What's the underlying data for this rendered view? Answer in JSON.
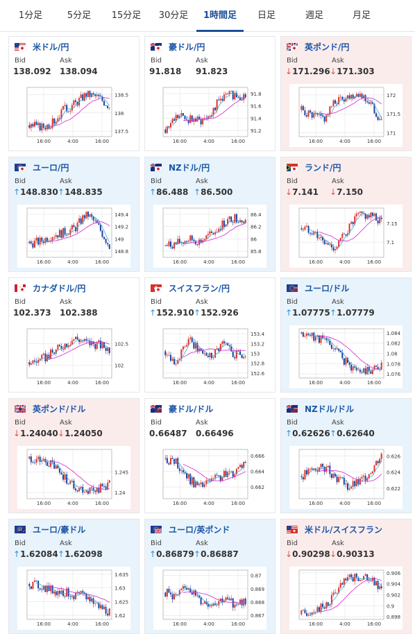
{
  "tabs": [
    "1分足",
    "5分足",
    "15分足",
    "30分足",
    "1時間足",
    "日足",
    "週足",
    "月足"
  ],
  "active_tab": "1時間足",
  "bid_label": "Bid",
  "ask_label": "Ask",
  "colors": {
    "candle_up": "#d9342b",
    "candle_down": "#1e3f9c",
    "ma_short": "#3aa8d8",
    "ma_long": "#d63ad6",
    "accent": "#1a4f98"
  },
  "cards": [
    {
      "name": "米ドル/円",
      "flags": [
        "us",
        "jp"
      ],
      "bg": "white",
      "bid": "138.092",
      "ask": "138.094",
      "dir": "none",
      "yticks": [
        "138.5",
        "138",
        "137.5"
      ],
      "xticks": [
        "16:00",
        "4:00",
        "16:00"
      ],
      "ytick_values": [
        138.5,
        138.0,
        137.5
      ],
      "ylim": [
        137.35,
        138.7
      ]
    },
    {
      "name": "豪ドル/円",
      "flags": [
        "au",
        "jp"
      ],
      "bg": "white",
      "bid": "91.818",
      "ask": "91.823",
      "dir": "none",
      "yticks": [
        "91.8",
        "91.6",
        "91.4",
        "91.2"
      ],
      "xticks": [
        "16:00",
        "4:00",
        "16:00"
      ],
      "ytick_values": [
        91.8,
        91.6,
        91.4,
        91.2
      ],
      "ylim": [
        91.1,
        91.9
      ]
    },
    {
      "name": "英ポンド/円",
      "flags": [
        "gb",
        "jp"
      ],
      "bg": "pink",
      "bid": "171.296",
      "ask": "171.303",
      "dir": "down",
      "yticks": [
        "172",
        "171.5",
        "171"
      ],
      "xticks": [
        "16:00",
        "4:00",
        "16:00"
      ],
      "ytick_values": [
        172,
        171.5,
        171
      ],
      "ylim": [
        170.9,
        172.2
      ]
    },
    {
      "name": "ユーロ/円",
      "flags": [
        "eu",
        "jp"
      ],
      "bg": "blue",
      "bid": "148.830",
      "ask": "148.835",
      "dir": "up",
      "yticks": [
        "149.4",
        "149.2",
        "149",
        "148.8"
      ],
      "xticks": [
        "16:00",
        "4:00",
        "16:00"
      ],
      "ytick_values": [
        149.4,
        149.2,
        149.0,
        148.8
      ],
      "ylim": [
        148.7,
        149.5
      ]
    },
    {
      "name": "NZドル/円",
      "flags": [
        "nz",
        "jp"
      ],
      "bg": "blue",
      "bid": "86.488",
      "ask": "86.500",
      "dir": "up",
      "yticks": [
        "86.4",
        "86.2",
        "86",
        "85.8"
      ],
      "xticks": [
        "16:00",
        "4:00",
        "16:00"
      ],
      "ytick_values": [
        86.4,
        86.2,
        86.0,
        85.8
      ],
      "ylim": [
        85.7,
        86.5
      ]
    },
    {
      "name": "ランド/円",
      "flags": [
        "za",
        "jp"
      ],
      "bg": "pink",
      "bid": "7.141",
      "ask": "7.150",
      "dir": "down",
      "yticks": [
        "7.15",
        "7.1"
      ],
      "xticks": [
        "16:00",
        "4:00",
        "16:00"
      ],
      "ytick_values": [
        7.15,
        7.1
      ],
      "ylim": [
        7.06,
        7.19
      ]
    },
    {
      "name": "カナダドル/円",
      "flags": [
        "ca",
        "jp"
      ],
      "bg": "white",
      "bid": "102.373",
      "ask": "102.388",
      "dir": "none",
      "yticks": [
        "102.5",
        "102"
      ],
      "xticks": [
        "16:00",
        "4:00",
        "16:00"
      ],
      "ytick_values": [
        102.5,
        102.0
      ],
      "ylim": [
        101.7,
        102.85
      ]
    },
    {
      "name": "スイスフラン/円",
      "flags": [
        "ch",
        "jp"
      ],
      "bg": "white",
      "bid": "152.910",
      "ask": "152.926",
      "dir": "up",
      "yticks": [
        "153.4",
        "153.2",
        "153",
        "152.8",
        "152.6"
      ],
      "xticks": [
        "16:00",
        "4:00",
        "16:00"
      ],
      "ytick_values": [
        153.4,
        153.2,
        153.0,
        152.8,
        152.6
      ],
      "ylim": [
        152.5,
        153.5
      ]
    },
    {
      "name": "ユーロ/ドル",
      "flags": [
        "eu",
        "us"
      ],
      "bg": "blue",
      "bid": "1.07775",
      "ask": "1.07779",
      "dir": "up",
      "yticks": [
        "1.084",
        "1.082",
        "1.08",
        "1.078",
        "1.076"
      ],
      "xticks": [
        "16:00",
        "4:00",
        "16:00"
      ],
      "ytick_values": [
        1.084,
        1.082,
        1.08,
        1.078,
        1.076
      ],
      "ylim": [
        1.0752,
        1.0848
      ]
    },
    {
      "name": "英ポンド/ドル",
      "flags": [
        "gb",
        "us"
      ],
      "bg": "pink",
      "bid": "1.24040",
      "ask": "1.24050",
      "dir": "down",
      "yticks": [
        "1.245",
        "1.24"
      ],
      "xticks": [
        "16:00",
        "4:00",
        "16:00"
      ],
      "ytick_values": [
        1.245,
        1.24
      ],
      "ylim": [
        1.2385,
        1.2505
      ]
    },
    {
      "name": "豪ドル/ドル",
      "flags": [
        "au",
        "us"
      ],
      "bg": "white",
      "bid": "0.66487",
      "ask": "0.66496",
      "dir": "none",
      "yticks": [
        "0.666",
        "0.664",
        "0.662"
      ],
      "xticks": [
        "16:00",
        "4:00",
        "16:00"
      ],
      "ytick_values": [
        0.666,
        0.664,
        0.662
      ],
      "ylim": [
        0.6605,
        0.6668
      ]
    },
    {
      "name": "NZドル/ドル",
      "flags": [
        "nz",
        "us"
      ],
      "bg": "blue",
      "bid": "0.62626",
      "ask": "0.62640",
      "dir": "up",
      "yticks": [
        "0.626",
        "0.624",
        "0.622"
      ],
      "xticks": [
        "16:00",
        "4:00",
        "16:00"
      ],
      "ytick_values": [
        0.626,
        0.624,
        0.622
      ],
      "ylim": [
        0.6207,
        0.6268
      ]
    },
    {
      "name": "ユーロ/豪ドル",
      "flags": [
        "eu",
        "au"
      ],
      "bg": "blue",
      "bid": "1.62084",
      "ask": "1.62098",
      "dir": "up",
      "yticks": [
        "1.635",
        "1.63",
        "1.625",
        "1.62"
      ],
      "xticks": [
        "16:00",
        "4:00",
        "16:00"
      ],
      "ytick_values": [
        1.635,
        1.63,
        1.625,
        1.62
      ],
      "ylim": [
        1.6185,
        1.6365
      ]
    },
    {
      "name": "ユーロ/英ポンド",
      "flags": [
        "eu",
        "gb"
      ],
      "bg": "blue",
      "bid": "0.86879",
      "ask": "0.86887",
      "dir": "up",
      "yticks": [
        "0.87",
        "0.869",
        "0.868",
        "0.867"
      ],
      "xticks": [
        "16:00",
        "4:00",
        "16:00"
      ],
      "ytick_values": [
        0.87,
        0.869,
        0.868,
        0.867
      ],
      "ylim": [
        0.8667,
        0.8704
      ]
    },
    {
      "name": "米ドル/スイスフラン",
      "flags": [
        "us",
        "ch"
      ],
      "bg": "pink",
      "bid": "0.90298",
      "ask": "0.90313",
      "dir": "down",
      "yticks": [
        "0.906",
        "0.904",
        "0.902",
        "0.9",
        "0.898"
      ],
      "xticks": [
        "16:00",
        "4:00",
        "16:00"
      ],
      "ytick_values": [
        0.906,
        0.904,
        0.902,
        0.9,
        0.898
      ],
      "ylim": [
        0.8975,
        0.9065
      ]
    }
  ]
}
